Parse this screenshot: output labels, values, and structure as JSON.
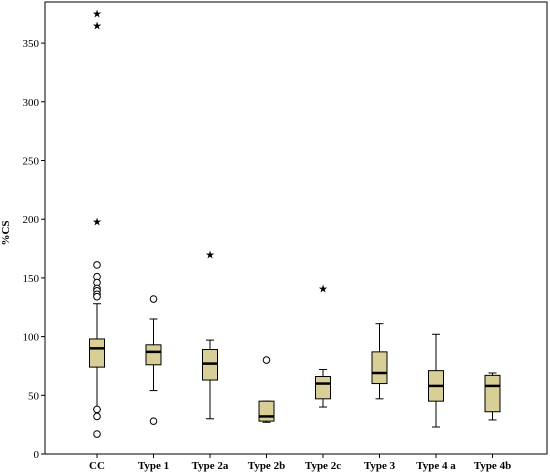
{
  "chart_data": {
    "type": "boxplot",
    "ylabel": "%CS",
    "xlabel": "",
    "ylim": [
      0,
      385
    ],
    "yticks": [
      0,
      50,
      100,
      150,
      200,
      250,
      300,
      350
    ],
    "grid": false,
    "box_color": "#d8cf97",
    "categories": [
      "CC",
      "Type 1",
      "Type 2a",
      "Type 2b",
      "Type 2c",
      "Type 3",
      "Type 4 a",
      "Type 4b"
    ],
    "boxes": [
      {
        "category": "CC",
        "min": 38,
        "q1": 74,
        "median": 90,
        "q3": 98,
        "max": 128,
        "outliers": [
          161,
          151,
          146,
          141,
          139,
          136,
          134,
          38,
          32,
          17
        ],
        "extremes": [
          375,
          365,
          198
        ]
      },
      {
        "category": "Type 1",
        "min": 54,
        "q1": 76,
        "median": 87,
        "q3": 93,
        "max": 115,
        "outliers": [
          132,
          28
        ],
        "extremes": []
      },
      {
        "category": "Type 2a",
        "min": 30,
        "q1": 63,
        "median": 77,
        "q3": 89,
        "max": 97,
        "outliers": [],
        "extremes": [
          170
        ]
      },
      {
        "category": "Type 2b",
        "min": 27,
        "q1": 28,
        "median": 32,
        "q3": 45,
        "max": 45,
        "outliers": [
          80
        ],
        "extremes": []
      },
      {
        "category": "Type 2c",
        "min": 40,
        "q1": 47,
        "median": 60,
        "q3": 66,
        "max": 72,
        "outliers": [],
        "extremes": [
          141
        ]
      },
      {
        "category": "Type 3",
        "min": 47,
        "q1": 60,
        "median": 69,
        "q3": 87,
        "max": 111,
        "outliers": [],
        "extremes": []
      },
      {
        "category": "Type 4 a",
        "min": 23,
        "q1": 45,
        "median": 58,
        "q3": 71,
        "max": 102,
        "outliers": [],
        "extremes": []
      },
      {
        "category": "Type 4b",
        "min": 29,
        "q1": 36,
        "median": 58,
        "q3": 67,
        "max": 69,
        "outliers": [],
        "extremes": []
      }
    ]
  }
}
